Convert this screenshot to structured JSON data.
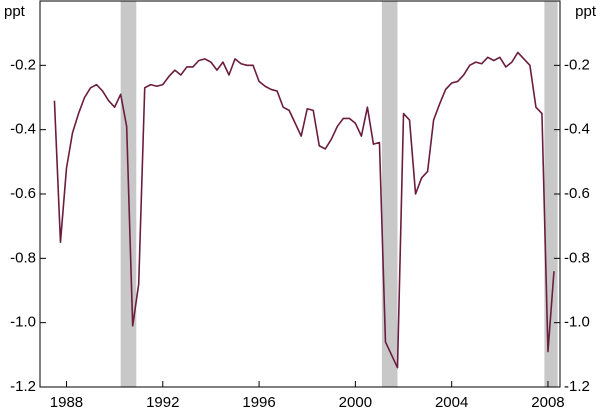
{
  "chart_data": {
    "type": "line",
    "y_unit_left": "ppt",
    "y_unit_right": "ppt",
    "x": [
      1987.5,
      1987.75,
      1988.0,
      1988.25,
      1988.5,
      1988.75,
      1989.0,
      1989.25,
      1989.5,
      1989.75,
      1990.0,
      1990.25,
      1990.5,
      1990.75,
      1991.0,
      1991.25,
      1991.5,
      1991.75,
      1992.0,
      1992.25,
      1992.5,
      1992.75,
      1993.0,
      1993.25,
      1993.5,
      1993.75,
      1994.0,
      1994.25,
      1994.5,
      1994.75,
      1995.0,
      1995.25,
      1995.5,
      1995.75,
      1996.0,
      1996.25,
      1996.5,
      1996.75,
      1997.0,
      1997.25,
      1997.5,
      1997.75,
      1998.0,
      1998.25,
      1998.5,
      1998.75,
      1999.0,
      1999.25,
      1999.5,
      1999.75,
      2000.0,
      2000.25,
      2000.5,
      2000.75,
      2001.0,
      2001.25,
      2001.5,
      2001.75,
      2002.0,
      2002.25,
      2002.5,
      2002.75,
      2003.0,
      2003.25,
      2003.5,
      2003.75,
      2004.0,
      2004.25,
      2004.5,
      2004.75,
      2005.0,
      2005.25,
      2005.5,
      2005.75,
      2006.0,
      2006.25,
      2006.5,
      2006.75,
      2007.0,
      2007.25,
      2007.5,
      2007.75,
      2008.0,
      2008.25
    ],
    "series": [
      {
        "color": "#6b1d3e",
        "values": [
          -0.31,
          -0.75,
          -0.52,
          -0.41,
          -0.35,
          -0.3,
          -0.27,
          -0.26,
          -0.28,
          -0.31,
          -0.33,
          -0.29,
          -0.39,
          -1.01,
          -0.88,
          -0.27,
          -0.26,
          -0.265,
          -0.26,
          -0.235,
          -0.215,
          -0.23,
          -0.205,
          -0.205,
          -0.185,
          -0.18,
          -0.19,
          -0.215,
          -0.19,
          -0.23,
          -0.18,
          -0.195,
          -0.2,
          -0.2,
          -0.25,
          -0.265,
          -0.275,
          -0.28,
          -0.33,
          -0.34,
          -0.38,
          -0.42,
          -0.335,
          -0.34,
          -0.45,
          -0.46,
          -0.43,
          -0.39,
          -0.365,
          -0.365,
          -0.38,
          -0.42,
          -0.33,
          -0.445,
          -0.44,
          -1.06,
          -1.1,
          -1.14,
          -0.35,
          -0.37,
          -0.6,
          -0.55,
          -0.53,
          -0.37,
          -0.32,
          -0.275,
          -0.255,
          -0.25,
          -0.23,
          -0.2,
          -0.19,
          -0.195,
          -0.175,
          -0.185,
          -0.175,
          -0.205,
          -0.19,
          -0.16,
          -0.18,
          -0.2,
          -0.33,
          -0.35,
          -1.09,
          -0.84
        ]
      }
    ],
    "shaded_periods": [
      [
        1990.25,
        1990.9
      ],
      [
        2001.1,
        2001.75
      ],
      [
        2007.85,
        2008.4
      ]
    ],
    "shade_color": "#c8c8c8",
    "xlim": [
      1986.9,
      2008.5
    ],
    "xticks": [
      1988,
      1992,
      1996,
      2000,
      2004,
      2008
    ],
    "ylim": [
      -1.2,
      0
    ],
    "yticks": [
      -1.2,
      {
        "value": -1,
        "label": "-1.0"
      },
      -0.8,
      -0.6,
      -0.4,
      -0.2
    ],
    "y2lim": [
      -1.2,
      0
    ],
    "y2ticks": [
      -1.2,
      {
        "value": -1,
        "label": "-1.0"
      },
      -0.8,
      -0.6,
      -0.4,
      -0.2
    ]
  }
}
